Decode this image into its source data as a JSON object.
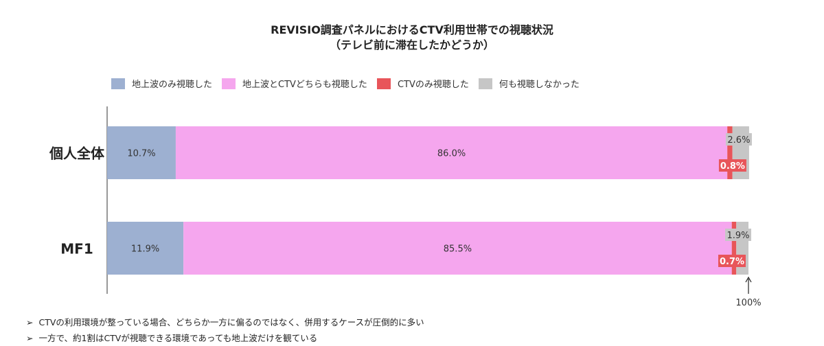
{
  "title": {
    "line1": "REVISIO調査パネルにおけるCTV利用世帯での視聴状況",
    "line2": "（テレビ前に滞在したかどうか）"
  },
  "chart_data": {
    "type": "bar",
    "orientation": "horizontal",
    "stacked": true,
    "categories": [
      "個人全体",
      "MF1"
    ],
    "series": [
      {
        "name": "地上波のみ視聴した",
        "color": "#9db0d1",
        "values": [
          10.7,
          11.9
        ],
        "labels": [
          "10.7%",
          "11.9%"
        ]
      },
      {
        "name": "地上波とCTVどちらも視聴した",
        "color": "#f5a6ee",
        "values": [
          86.0,
          85.5
        ],
        "labels": [
          "86.0%",
          "85.5%"
        ]
      },
      {
        "name": "CTVのみ視聴した",
        "color": "#e8555a",
        "values": [
          0.8,
          0.7
        ],
        "labels": [
          "0.8%",
          "0.7%"
        ]
      },
      {
        "name": "何も視聴しなかった",
        "color": "#c6c6c6",
        "values": [
          2.6,
          1.9
        ],
        "labels": [
          "2.6%",
          "1.9%"
        ]
      }
    ],
    "xlim": [
      0,
      100
    ],
    "end_marker_label": "100%",
    "legend_position": "top",
    "grid": false
  },
  "notes": [
    "CTVの利用環境が整っている場合、どちらか一方に偏るのではなく、併用するケースが圧倒的に多い",
    "一方で、約1割はCTVが視聴できる環境であっても地上波だけを観ている"
  ],
  "note_bullet": "➢"
}
